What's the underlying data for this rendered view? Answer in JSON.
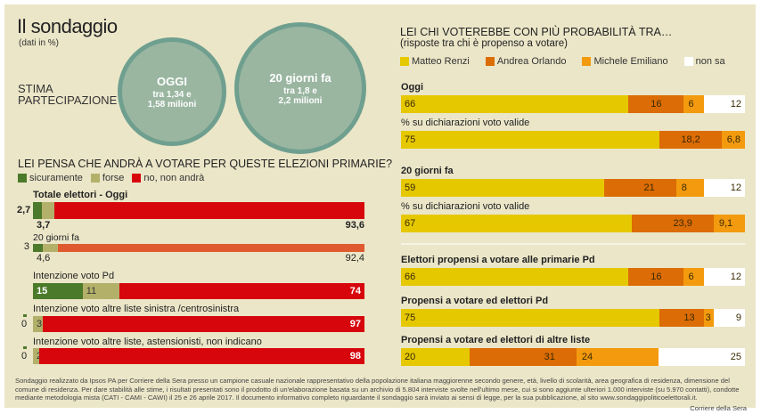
{
  "header": {
    "title": "Il sondaggio",
    "subtitle": "(dati in %)",
    "stima_label_1": "STIMA",
    "stima_label_2": "PARTECIPAZIONE"
  },
  "circles": [
    {
      "heading": "OGGI",
      "line1": "tra 1,34 e",
      "line2": "1,58 milioni"
    },
    {
      "heading": "20 giorni fa",
      "line1": "tra 1,8 e",
      "line2": "2,2 milioni"
    }
  ],
  "colors": {
    "background": "#ebe6c8",
    "sicuramente": "#4a7a2a",
    "forse": "#b3b06a",
    "no": "#d7060d",
    "no_past": "#e05a30",
    "renzi": "#e5c800",
    "orlando": "#dc6c05",
    "emiliano": "#f39a0e",
    "non_sa": "#ffffff"
  },
  "chart_data": [
    {
      "type": "bar",
      "orientation": "horizontal",
      "stacked": true,
      "title": "LEI PENSA CHE ANDRÀ A VOTARE PER QUESTE ELEZIONI PRIMARIE?",
      "legend": [
        "sicuramente",
        "forse",
        "no, non andrà"
      ],
      "legend_position": "top-left",
      "unit": "%",
      "categories": [
        "Totale elettori - Oggi",
        "20 giorni fa",
        "Intenzione voto  Pd",
        "Intenzione voto altre liste sinistra /centrosinistra",
        "Intenzione voto  altre liste, astensionisti, non indicano"
      ],
      "series": [
        {
          "name": "sicuramente",
          "values": [
            2.7,
            3,
            15,
            0,
            0
          ],
          "labels": [
            "2,7",
            "3",
            "15",
            "0",
            "0"
          ]
        },
        {
          "name": "forse",
          "values": [
            3.7,
            4.6,
            11,
            3,
            2
          ],
          "labels": [
            "3,7",
            "4,6",
            "11",
            "3",
            "2"
          ]
        },
        {
          "name": "no, non andrà",
          "values": [
            93.6,
            92.4,
            74,
            97,
            98
          ],
          "labels": [
            "93,6",
            "92,4",
            "74",
            "97",
            "98"
          ]
        }
      ]
    },
    {
      "type": "bar",
      "orientation": "horizontal",
      "stacked": true,
      "title": "LEI CHI VOTEREBBE CON PIÙ PROBABILITÀ TRA…",
      "subtitle": "(risposte tra chi è propenso a votare)",
      "legend": [
        "Matteo Renzi",
        "Andrea Orlando",
        "Michele Emiliano",
        "non sa"
      ],
      "legend_position": "top-left",
      "unit": "%",
      "categories": [
        "Oggi",
        "% su dichiarazioni voto valide",
        "20 giorni fa",
        "% su dichiarazioni voto valide",
        "Elettori propensi a votare alle primarie Pd",
        "Propensi a votare ed elettori Pd",
        "Propensi a votare ed elettori di altre liste"
      ],
      "series": [
        {
          "name": "Matteo Renzi",
          "values": [
            66,
            75,
            59,
            67,
            66,
            75,
            20
          ],
          "labels": [
            "66",
            "75",
            "59",
            "67",
            "66",
            "75",
            "20"
          ]
        },
        {
          "name": "Andrea Orlando",
          "values": [
            16,
            18.2,
            21,
            23.9,
            16,
            13,
            31
          ],
          "labels": [
            "16",
            "18,2",
            "21",
            "23,9",
            "16",
            "13",
            "31"
          ]
        },
        {
          "name": "Michele Emiliano",
          "values": [
            6,
            6.8,
            8,
            9.1,
            6,
            3,
            24
          ],
          "labels": [
            "6",
            "6,8",
            "8",
            "9,1",
            "6",
            "3",
            "24"
          ]
        },
        {
          "name": "non sa",
          "values": [
            12,
            0,
            12,
            0,
            12,
            9,
            25
          ],
          "labels": [
            "12",
            "",
            "12",
            "",
            "12",
            "9",
            "25"
          ]
        }
      ]
    }
  ],
  "footer": {
    "note": "Sondaggio realizzato da Ipsos PA per Corriere della Sera presso un campione casuale nazionale rappresentativo della popolazione italiana maggiorenne secondo genere, età, livello di scolarità, area geografica di residenza, dimensione del comune di residenza. Per dare stabilità alle stime, i risultati presentati sono il prodotto di un'elaborazione basata su un archivio di 5.804  interviste svolte nell'ultimo mese, cui si sono aggiunte ulteriori 1.000 interviste (su 5.970 contatti), condotte mediante metodologia mista (CATI - CAMI - CAWI) il 25 e 26 aprile 2017. Il documento informativo completo riguardante il sondaggio sarà inviato ai sensi di legge, per la sua pubblicazione, al sito www.sondaggipoliticoelettorali.it.",
    "credit": "Corriere della Sera"
  }
}
